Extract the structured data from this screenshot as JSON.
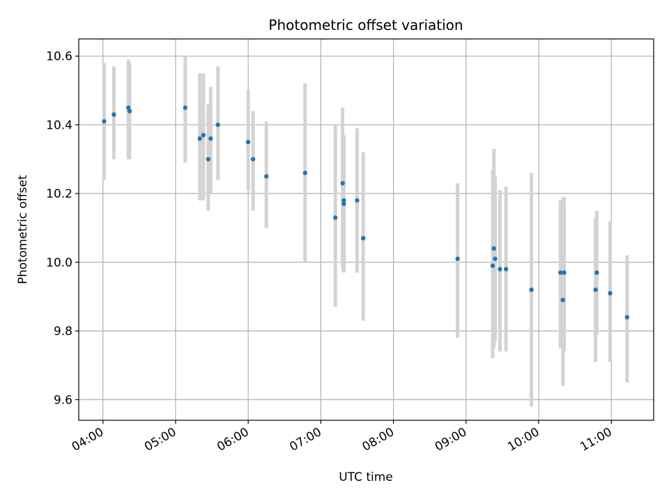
{
  "chart_data": {
    "type": "scatter",
    "title": "Photometric offset variation",
    "xlabel": "UTC time",
    "ylabel": "Photometric offset",
    "x_axis_type": "time",
    "xlim": [
      "03:40",
      "11:35"
    ],
    "ylim": [
      9.54,
      10.65
    ],
    "x_ticks": [
      "04:00",
      "05:00",
      "06:00",
      "07:00",
      "08:00",
      "09:00",
      "10:00",
      "11:00"
    ],
    "y_ticks": [
      "9.6",
      "9.8",
      "10.0",
      "10.2",
      "10.4",
      "10.6"
    ],
    "grid": true,
    "legend": "none",
    "marker_color": "#1f77b4",
    "errorbar_color": "#d3d3d3",
    "points": [
      {
        "x": "04:01",
        "y": 10.41,
        "ylo": 10.24,
        "yhi": 10.58
      },
      {
        "x": "04:09",
        "y": 10.43,
        "ylo": 10.3,
        "yhi": 10.57
      },
      {
        "x": "04:21",
        "y": 10.45,
        "ylo": 10.3,
        "yhi": 10.59
      },
      {
        "x": "04:22",
        "y": 10.44,
        "ylo": 10.3,
        "yhi": 10.58
      },
      {
        "x": "05:08",
        "y": 10.45,
        "ylo": 10.29,
        "yhi": 10.6
      },
      {
        "x": "05:20",
        "y": 10.36,
        "ylo": 10.18,
        "yhi": 10.55
      },
      {
        "x": "05:23",
        "y": 10.37,
        "ylo": 10.18,
        "yhi": 10.55
      },
      {
        "x": "05:27",
        "y": 10.3,
        "ylo": 10.15,
        "yhi": 10.46
      },
      {
        "x": "05:29",
        "y": 10.36,
        "ylo": 10.2,
        "yhi": 10.51
      },
      {
        "x": "05:35",
        "y": 10.4,
        "ylo": 10.24,
        "yhi": 10.57
      },
      {
        "x": "06:00",
        "y": 10.35,
        "ylo": 10.21,
        "yhi": 10.5
      },
      {
        "x": "06:04",
        "y": 10.3,
        "ylo": 10.15,
        "yhi": 10.44
      },
      {
        "x": "06:15",
        "y": 10.25,
        "ylo": 10.1,
        "yhi": 10.41
      },
      {
        "x": "06:47",
        "y": 10.26,
        "ylo": 10.0,
        "yhi": 10.52
      },
      {
        "x": "07:12",
        "y": 10.13,
        "ylo": 9.87,
        "yhi": 10.4
      },
      {
        "x": "07:18",
        "y": 10.23,
        "ylo": 9.98,
        "yhi": 10.45
      },
      {
        "x": "07:19",
        "y": 10.18,
        "ylo": 9.97,
        "yhi": 10.37
      },
      {
        "x": "07:19",
        "y": 10.17,
        "ylo": 9.99,
        "yhi": 10.37
      },
      {
        "x": "07:30",
        "y": 10.18,
        "ylo": 9.97,
        "yhi": 10.39
      },
      {
        "x": "07:35",
        "y": 10.07,
        "ylo": 9.83,
        "yhi": 10.32
      },
      {
        "x": "08:53",
        "y": 10.01,
        "ylo": 9.78,
        "yhi": 10.23
      },
      {
        "x": "09:22",
        "y": 9.99,
        "ylo": 9.72,
        "yhi": 10.27
      },
      {
        "x": "09:23",
        "y": 10.04,
        "ylo": 9.75,
        "yhi": 10.33
      },
      {
        "x": "09:24",
        "y": 10.01,
        "ylo": 9.77,
        "yhi": 10.25
      },
      {
        "x": "09:28",
        "y": 9.98,
        "ylo": 9.74,
        "yhi": 10.21
      },
      {
        "x": "09:33",
        "y": 9.98,
        "ylo": 9.74,
        "yhi": 10.22
      },
      {
        "x": "09:54",
        "y": 9.92,
        "ylo": 9.58,
        "yhi": 10.26
      },
      {
        "x": "10:18",
        "y": 9.97,
        "ylo": 9.75,
        "yhi": 10.18
      },
      {
        "x": "10:20",
        "y": 9.89,
        "ylo": 9.64,
        "yhi": 10.19
      },
      {
        "x": "10:21",
        "y": 9.97,
        "ylo": 9.74,
        "yhi": 10.19
      },
      {
        "x": "10:47",
        "y": 9.92,
        "ylo": 9.71,
        "yhi": 10.13
      },
      {
        "x": "10:48",
        "y": 9.97,
        "ylo": 9.79,
        "yhi": 10.15
      },
      {
        "x": "10:59",
        "y": 9.91,
        "ylo": 9.71,
        "yhi": 10.12
      },
      {
        "x": "11:13",
        "y": 9.84,
        "ylo": 9.65,
        "yhi": 10.02
      }
    ]
  }
}
